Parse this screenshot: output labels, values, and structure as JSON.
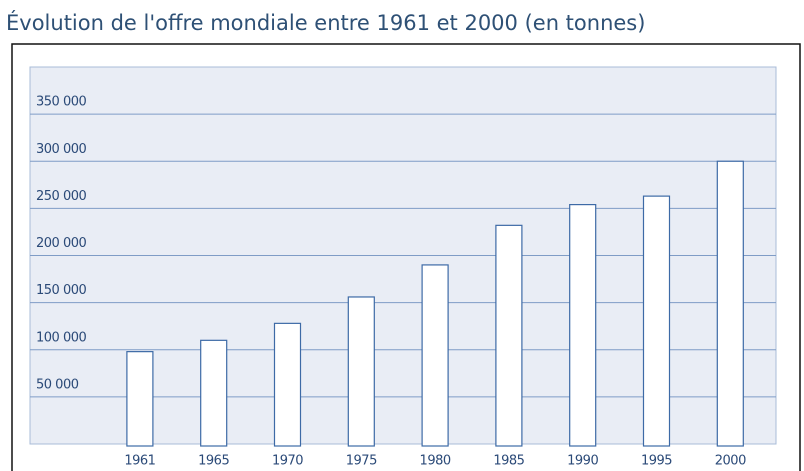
{
  "chart_data": {
    "type": "bar",
    "title": "Évolution de l'offre mondiale entre 1961 et 2000 (en tonnes)",
    "categories": [
      "1961",
      "1965",
      "1970",
      "1975",
      "1980",
      "1985",
      "1990",
      "1995",
      "2000"
    ],
    "values": [
      98000,
      110000,
      128000,
      156000,
      190000,
      232000,
      254000,
      263000,
      300000
    ],
    "color": "#ffffff",
    "ylim": [
      0,
      400000
    ],
    "yticks": [
      {
        "value": 50000,
        "label": "50 000"
      },
      {
        "value": 100000,
        "label": "100 000"
      },
      {
        "value": 150000,
        "label": "150 000"
      },
      {
        "value": 200000,
        "label": "200 000"
      },
      {
        "value": 250000,
        "label": "250 000"
      },
      {
        "value": 300000,
        "label": "300 000"
      },
      {
        "value": 350000,
        "label": "350 000"
      }
    ],
    "grid": true
  }
}
